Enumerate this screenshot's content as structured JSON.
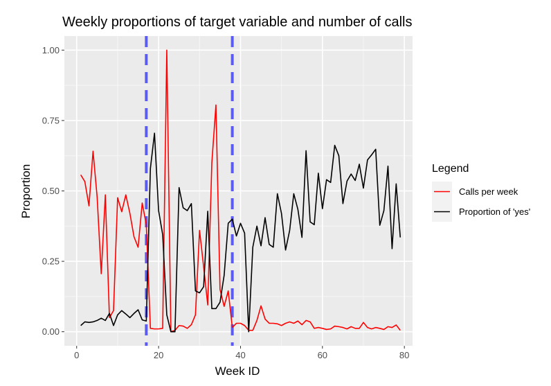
{
  "chart_data": {
    "type": "line",
    "title": "Weekly proportions of target variable and number of calls",
    "xlabel": "Week ID",
    "ylabel": "Proportion",
    "xlim": [
      -3,
      82
    ],
    "ylim": [
      -0.05,
      1.05
    ],
    "x_ticks": [
      0,
      20,
      40,
      60,
      80
    ],
    "x_tick_labels": [
      "0",
      "20",
      "40",
      "60",
      "80"
    ],
    "y_ticks": [
      0,
      0.25,
      0.5,
      0.75,
      1
    ],
    "y_tick_labels": [
      "0.00",
      "0.25",
      "0.50",
      "0.75",
      "1.00"
    ],
    "grid": true,
    "legend": {
      "title": "Legend",
      "position": "right"
    },
    "vlines": [
      {
        "x": 17,
        "color": "#5b5bef",
        "style": "dashed"
      },
      {
        "x": 38,
        "color": "#5b5bef",
        "style": "dashed"
      }
    ],
    "series": [
      {
        "name": "Calls per week",
        "color": "#ff0000",
        "points": [
          [
            1,
            0.557
          ],
          [
            2,
            0.533
          ],
          [
            3,
            0.447
          ],
          [
            4,
            0.641
          ],
          [
            5,
            0.478
          ],
          [
            6,
            0.206
          ],
          [
            7,
            0.486
          ],
          [
            8,
            0.05
          ],
          [
            9,
            0.075
          ],
          [
            10,
            0.476
          ],
          [
            11,
            0.426
          ],
          [
            12,
            0.486
          ],
          [
            13,
            0.42
          ],
          [
            14,
            0.337
          ],
          [
            15,
            0.3
          ],
          [
            16,
            0.457
          ],
          [
            17,
            0.38
          ],
          [
            18,
            0.012
          ],
          [
            19,
            0.01
          ],
          [
            20,
            0.01
          ],
          [
            21,
            0.012
          ],
          [
            22,
            1.0
          ],
          [
            23,
            0.0
          ],
          [
            24,
            0.005
          ],
          [
            25,
            0.022
          ],
          [
            26,
            0.02
          ],
          [
            27,
            0.012
          ],
          [
            28,
            0.025
          ],
          [
            29,
            0.06
          ],
          [
            30,
            0.36
          ],
          [
            31,
            0.23
          ],
          [
            32,
            0.095
          ],
          [
            33,
            0.6
          ],
          [
            34,
            0.805
          ],
          [
            35,
            0.15
          ],
          [
            36,
            0.09
          ],
          [
            37,
            0.145
          ],
          [
            38,
            0.015
          ],
          [
            39,
            0.03
          ],
          [
            40,
            0.03
          ],
          [
            41,
            0.022
          ],
          [
            42,
            0.005
          ],
          [
            43,
            0.005
          ],
          [
            44,
            0.04
          ],
          [
            45,
            0.092
          ],
          [
            46,
            0.045
          ],
          [
            47,
            0.03
          ],
          [
            48,
            0.03
          ],
          [
            49,
            0.028
          ],
          [
            50,
            0.022
          ],
          [
            51,
            0.03
          ],
          [
            52,
            0.035
          ],
          [
            53,
            0.03
          ],
          [
            54,
            0.038
          ],
          [
            55,
            0.025
          ],
          [
            56,
            0.04
          ],
          [
            57,
            0.035
          ],
          [
            58,
            0.012
          ],
          [
            59,
            0.015
          ],
          [
            60,
            0.012
          ],
          [
            61,
            0.008
          ],
          [
            62,
            0.01
          ],
          [
            63,
            0.02
          ],
          [
            64,
            0.018
          ],
          [
            65,
            0.015
          ],
          [
            66,
            0.01
          ],
          [
            67,
            0.018
          ],
          [
            68,
            0.012
          ],
          [
            69,
            0.012
          ],
          [
            70,
            0.033
          ],
          [
            71,
            0.015
          ],
          [
            72,
            0.01
          ],
          [
            73,
            0.015
          ],
          [
            74,
            0.012
          ],
          [
            75,
            0.008
          ],
          [
            76,
            0.018
          ],
          [
            77,
            0.015
          ],
          [
            78,
            0.024
          ],
          [
            79,
            0.005
          ]
        ]
      },
      {
        "name": "Proportion of 'yes'",
        "color": "#000000",
        "points": [
          [
            1,
            0.022
          ],
          [
            2,
            0.035
          ],
          [
            3,
            0.033
          ],
          [
            4,
            0.035
          ],
          [
            5,
            0.04
          ],
          [
            6,
            0.048
          ],
          [
            7,
            0.04
          ],
          [
            8,
            0.065
          ],
          [
            9,
            0.022
          ],
          [
            10,
            0.06
          ],
          [
            11,
            0.075
          ],
          [
            12,
            0.063
          ],
          [
            13,
            0.05
          ],
          [
            14,
            0.065
          ],
          [
            15,
            0.078
          ],
          [
            16,
            0.042
          ],
          [
            17,
            0.038
          ],
          [
            18,
            0.58
          ],
          [
            19,
            0.705
          ],
          [
            20,
            0.43
          ],
          [
            21,
            0.345
          ],
          [
            22,
            0.06
          ],
          [
            23,
            0.0
          ],
          [
            24,
            0.0
          ],
          [
            25,
            0.512
          ],
          [
            26,
            0.44
          ],
          [
            27,
            0.43
          ],
          [
            28,
            0.455
          ],
          [
            29,
            0.145
          ],
          [
            30,
            0.138
          ],
          [
            31,
            0.16
          ],
          [
            32,
            0.428
          ],
          [
            33,
            0.082
          ],
          [
            34,
            0.082
          ],
          [
            35,
            0.105
          ],
          [
            36,
            0.2
          ],
          [
            37,
            0.385
          ],
          [
            38,
            0.4
          ],
          [
            39,
            0.34
          ],
          [
            40,
            0.385
          ],
          [
            41,
            0.35
          ],
          [
            42,
            0.0
          ],
          [
            43,
            0.3
          ],
          [
            44,
            0.375
          ],
          [
            45,
            0.305
          ],
          [
            46,
            0.405
          ],
          [
            47,
            0.31
          ],
          [
            48,
            0.3
          ],
          [
            49,
            0.49
          ],
          [
            50,
            0.42
          ],
          [
            51,
            0.29
          ],
          [
            52,
            0.36
          ],
          [
            53,
            0.49
          ],
          [
            54,
            0.435
          ],
          [
            55,
            0.335
          ],
          [
            56,
            0.643
          ],
          [
            57,
            0.39
          ],
          [
            58,
            0.38
          ],
          [
            59,
            0.563
          ],
          [
            60,
            0.437
          ],
          [
            61,
            0.54
          ],
          [
            62,
            0.53
          ],
          [
            63,
            0.662
          ],
          [
            64,
            0.625
          ],
          [
            65,
            0.455
          ],
          [
            66,
            0.535
          ],
          [
            67,
            0.56
          ],
          [
            68,
            0.537
          ],
          [
            69,
            0.595
          ],
          [
            70,
            0.51
          ],
          [
            71,
            0.61
          ],
          [
            72,
            0.628
          ],
          [
            73,
            0.648
          ],
          [
            74,
            0.378
          ],
          [
            75,
            0.43
          ],
          [
            76,
            0.588
          ],
          [
            77,
            0.295
          ],
          [
            78,
            0.525
          ],
          [
            79,
            0.335
          ]
        ]
      }
    ]
  }
}
